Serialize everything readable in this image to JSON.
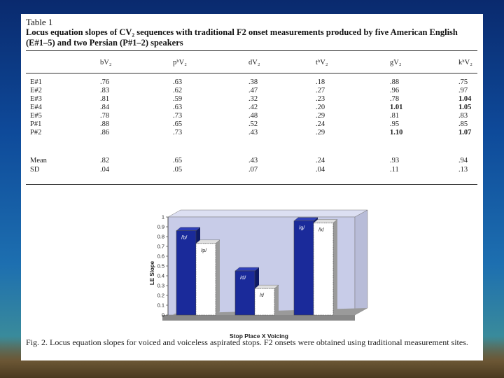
{
  "table": {
    "label": "Table 1",
    "caption": "Locus equation slopes of CV₂ sequences with traditional F2 onset measurements produced by five American English (E#1–5) and two Persian (P#1–2) speakers",
    "columns": [
      "",
      "bV₂",
      "pʰV₂",
      "dV₂",
      "tʰV₂",
      "gV₂",
      "kʰV₂"
    ],
    "rows": [
      {
        "label": "E#1",
        "values": [
          ".76",
          ".63",
          ".38",
          ".18",
          ".88",
          ".75"
        ],
        "bold": [
          false,
          false,
          false,
          false,
          false,
          false
        ]
      },
      {
        "label": "E#2",
        "values": [
          ".83",
          ".62",
          ".47",
          ".27",
          ".96",
          ".97"
        ],
        "bold": [
          false,
          false,
          false,
          false,
          false,
          false
        ]
      },
      {
        "label": "E#3",
        "values": [
          ".81",
          ".59",
          ".32",
          ".23",
          ".78",
          "1.04"
        ],
        "bold": [
          false,
          false,
          false,
          false,
          false,
          true
        ]
      },
      {
        "label": "E#4",
        "values": [
          ".84",
          ".63",
          ".42",
          ".20",
          "1.01",
          "1.05"
        ],
        "bold": [
          false,
          false,
          false,
          false,
          true,
          true
        ]
      },
      {
        "label": "E#5",
        "values": [
          ".78",
          ".73",
          ".48",
          ".29",
          ".81",
          ".83"
        ],
        "bold": [
          false,
          false,
          false,
          false,
          false,
          false
        ]
      },
      {
        "label": "P#1",
        "values": [
          ".88",
          ".65",
          ".52",
          ".24",
          ".95",
          ".85"
        ],
        "bold": [
          false,
          false,
          false,
          false,
          false,
          false
        ]
      },
      {
        "label": "P#2",
        "values": [
          ".86",
          ".73",
          ".43",
          ".29",
          "1.10",
          "1.07"
        ],
        "bold": [
          false,
          false,
          false,
          false,
          true,
          true
        ]
      }
    ],
    "summary": [
      {
        "label": "Mean",
        "values": [
          ".82",
          ".65",
          ".43",
          ".24",
          ".93",
          ".94"
        ]
      },
      {
        "label": "SD",
        "values": [
          ".04",
          ".05",
          ".07",
          ".04",
          ".11",
          ".13"
        ]
      }
    ]
  },
  "chart_data": {
    "type": "bar",
    "categories": [
      "/b/",
      "/p/",
      "/d/",
      "/t/",
      "/g/",
      "/k/"
    ],
    "values": [
      0.86,
      0.73,
      0.45,
      0.27,
      0.96,
      0.94
    ],
    "voicing": [
      "voiced",
      "voiceless",
      "voiced",
      "voiceless",
      "voiced",
      "voiceless"
    ],
    "xlabel": "Stop Place X Voicing",
    "ylabel": "LE Slope",
    "ylim": [
      0,
      1
    ],
    "yticks": [
      "0",
      "0.1",
      "0.2",
      "0.3",
      "0.4",
      "0.5",
      "0.6",
      "0.7",
      "0.8",
      "0.9",
      "1"
    ],
    "colors": {
      "voiced": "#1a2a9a",
      "voiceless": "#ffffff",
      "plot_bg": "#c8cce8",
      "floor": "#9a9a9a"
    },
    "grid": false
  },
  "figure": {
    "caption": "Fig. 2. Locus equation slopes for voiced and voiceless aspirated stops. F2 onsets were obtained using traditional measurement sites."
  }
}
